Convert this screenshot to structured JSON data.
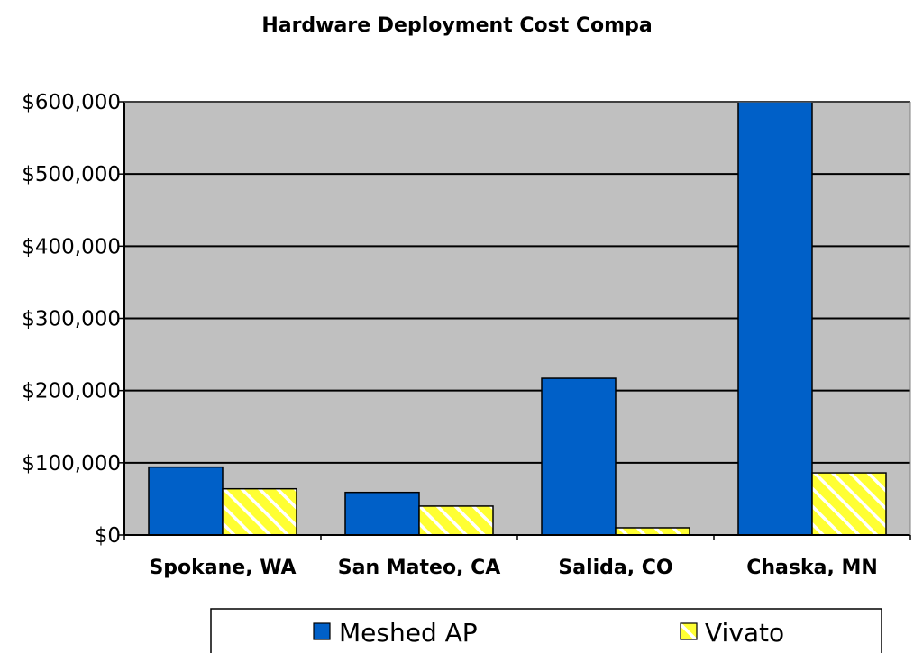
{
  "chart_data": {
    "type": "bar",
    "title": "Hardware Deployment Cost Compa",
    "xlabel": "",
    "ylabel": "",
    "categories": [
      "Spokane, WA",
      "San Mateo, CA",
      "Salida, CO",
      "Chaska, MN"
    ],
    "series": [
      {
        "name": "Meshed AP",
        "values": [
          94000,
          59000,
          217000,
          600000
        ],
        "color": "#0060c8",
        "pattern": "solid"
      },
      {
        "name": "Vivato",
        "values": [
          64000,
          40000,
          10000,
          86000
        ],
        "color": "#ffff33",
        "pattern": "diagonal-hatch"
      }
    ],
    "ylim": [
      0,
      600000
    ],
    "yticks": [
      0,
      100000,
      200000,
      300000,
      400000,
      500000,
      600000
    ],
    "ytick_labels": [
      "$0",
      "$100,000",
      "$200,000",
      "$300,000",
      "$400,000",
      "$500,000",
      "$600,000"
    ],
    "grid": true,
    "plot_background": "#c0c0c0",
    "legend_position": "bottom"
  }
}
